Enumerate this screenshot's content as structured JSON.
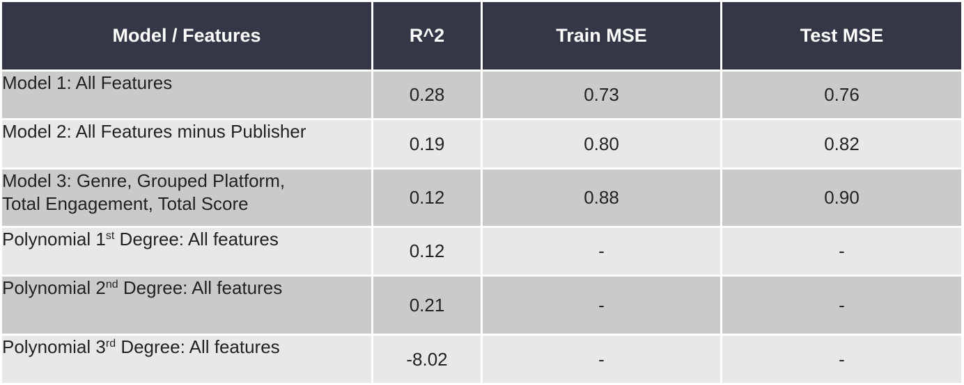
{
  "table": {
    "headers": [
      "Model / Features",
      "R^2",
      "Train MSE",
      "Test MSE"
    ],
    "rows": [
      {
        "model": "Model 1: All Features",
        "model_line2": "",
        "ordinal": "",
        "model_tail": "",
        "r2": "0.28",
        "train_mse": "0.73",
        "test_mse": "0.76",
        "style": "dark"
      },
      {
        "model": "Model 2: All Features minus Publisher",
        "model_line2": "",
        "ordinal": "",
        "model_tail": "",
        "r2": "0.19",
        "train_mse": "0.80",
        "test_mse": "0.82",
        "style": "light"
      },
      {
        "model": "Model 3: Genre, Grouped Platform,",
        "model_line2": "Total Engagement, Total Score",
        "ordinal": "",
        "model_tail": "",
        "r2": "0.12",
        "train_mse": "0.88",
        "test_mse": "0.90",
        "style": "dark"
      },
      {
        "model": "Polynomial 1",
        "model_line2": "",
        "ordinal": "st",
        "model_tail": " Degree: All features",
        "r2": "0.12",
        "train_mse": "-",
        "test_mse": "-",
        "style": "light"
      },
      {
        "model": "Polynomial 2",
        "model_line2": "",
        "ordinal": "nd",
        "model_tail": " Degree: All features",
        "r2": "0.21",
        "train_mse": "-",
        "test_mse": "-",
        "style": "dark"
      },
      {
        "model": "Polynomial 3",
        "model_line2": "",
        "ordinal": "rd",
        "model_tail": " Degree: All features",
        "r2": "-8.02",
        "train_mse": "-",
        "test_mse": "-",
        "style": "light"
      }
    ]
  },
  "colors": {
    "header_bg": "#353746",
    "row_dark": "#cacaca",
    "row_light": "#e8e8e8"
  }
}
